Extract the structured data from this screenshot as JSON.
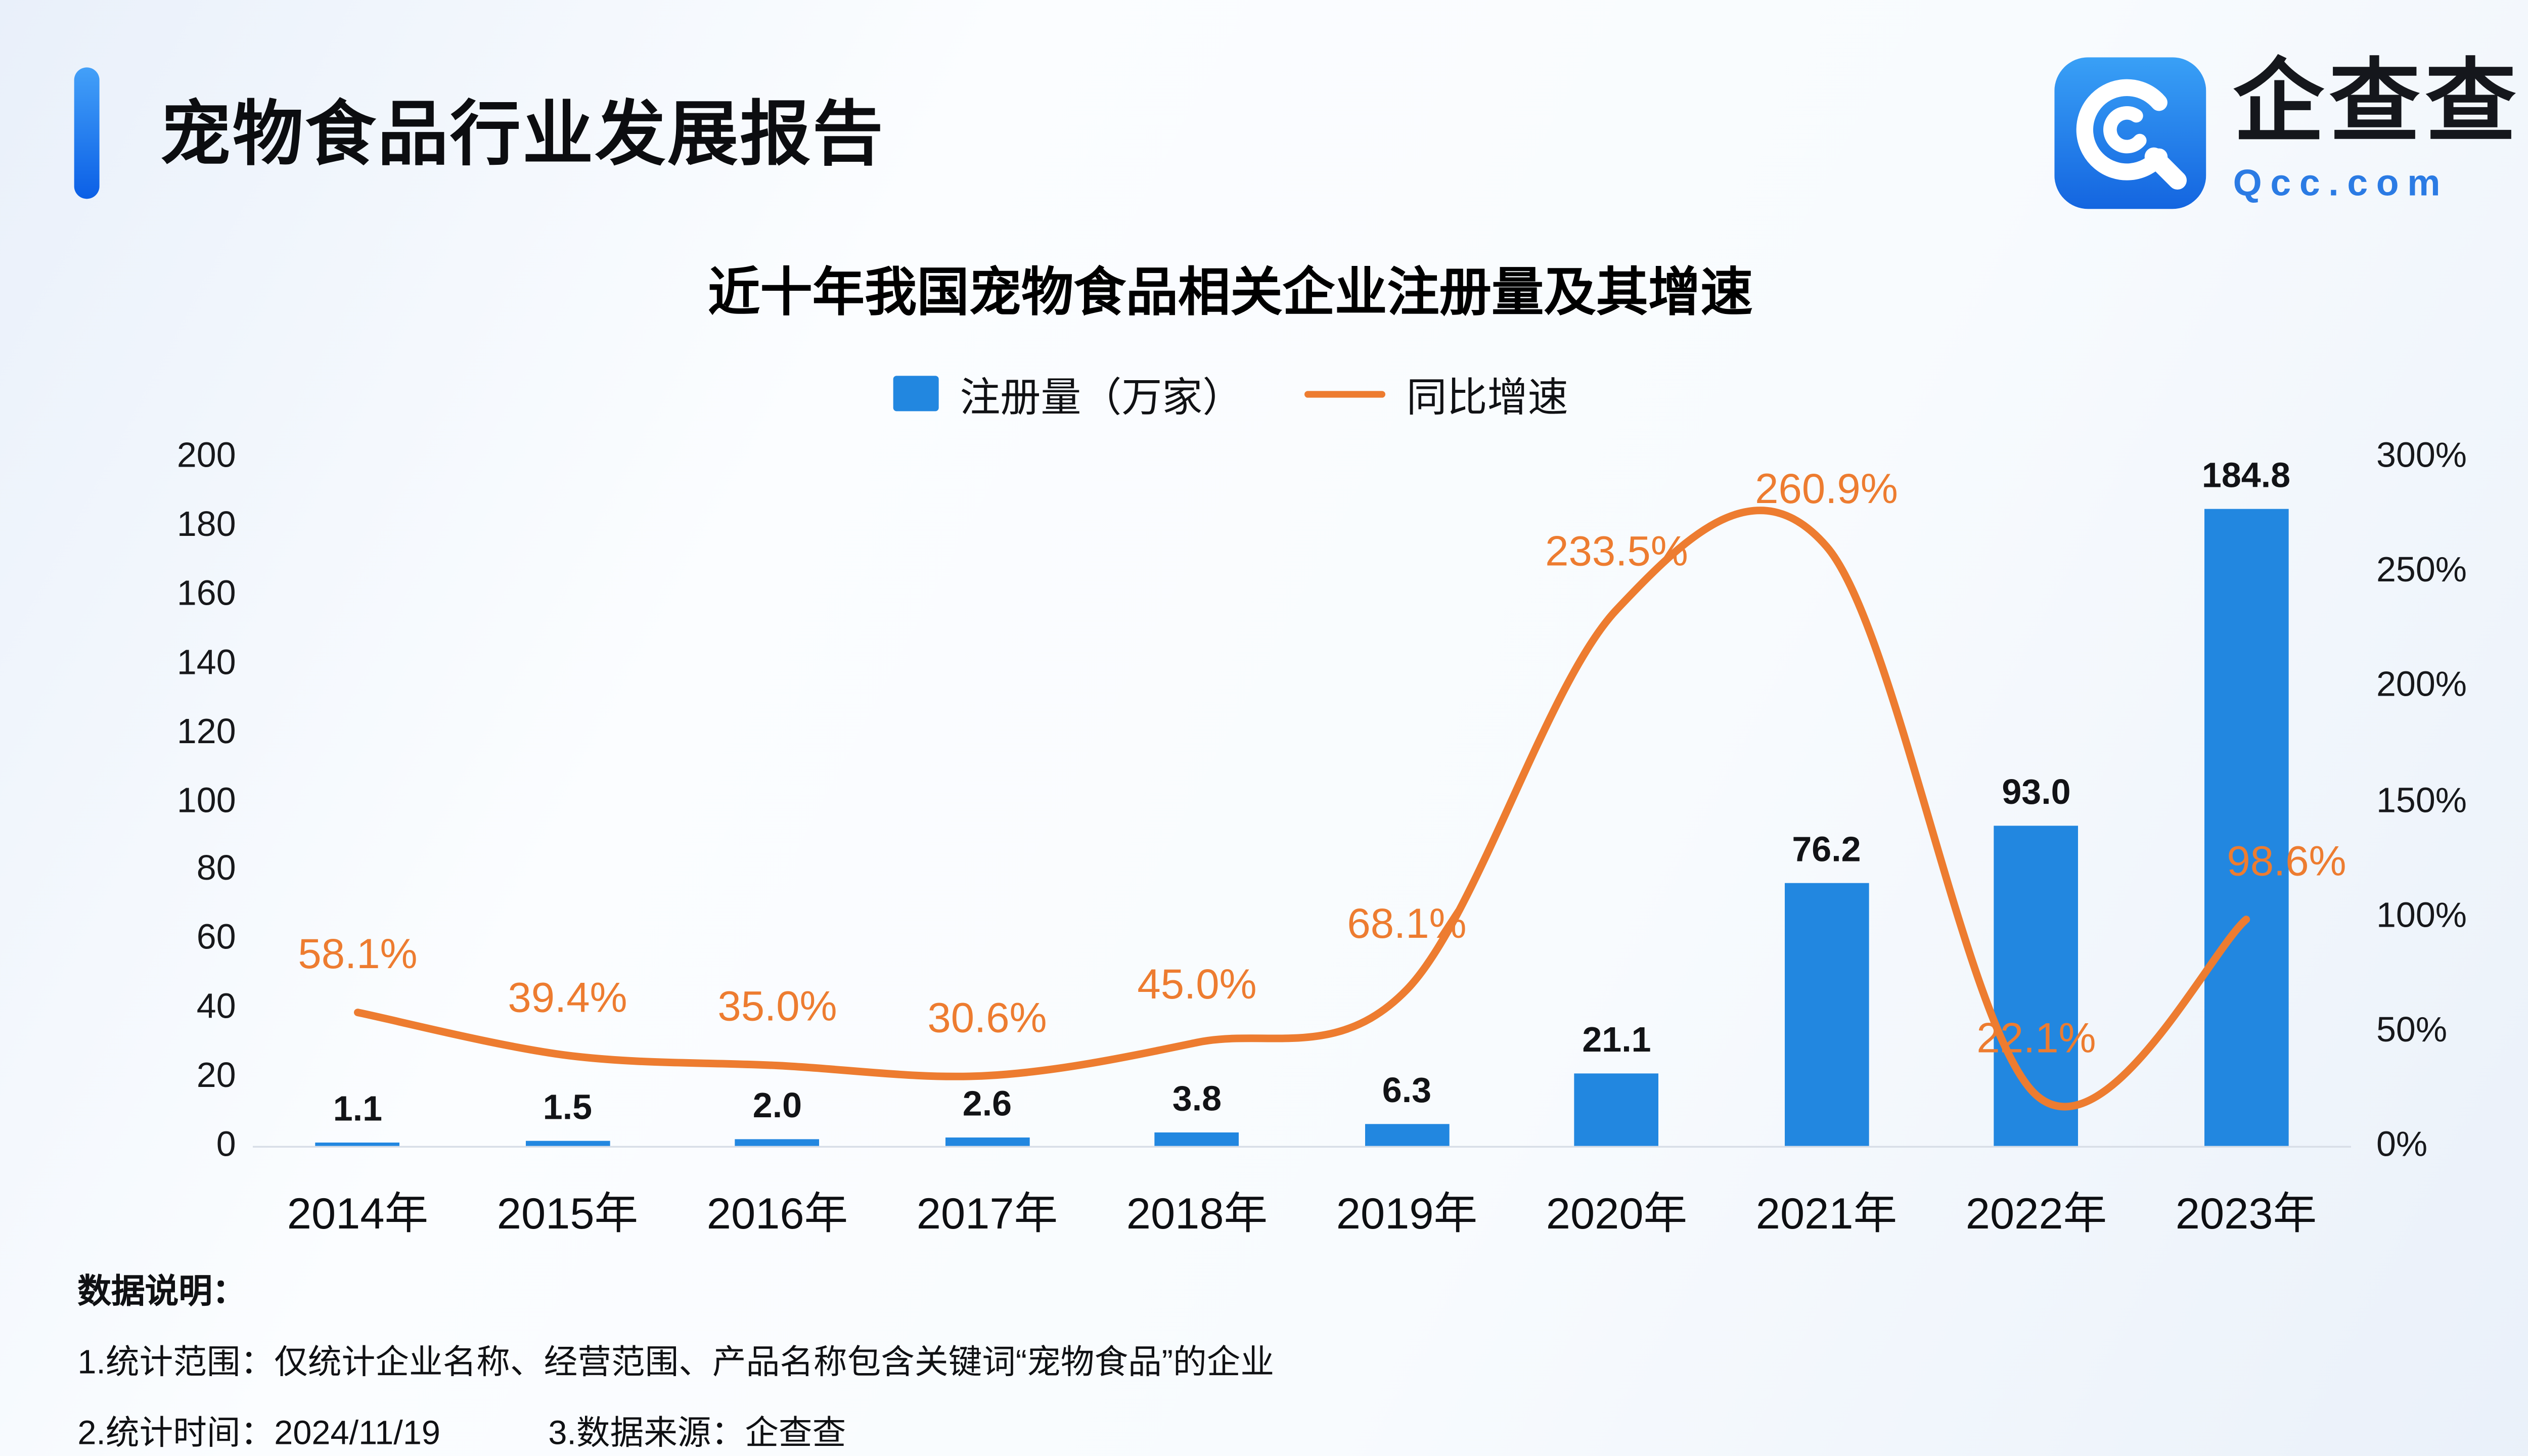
{
  "header": {
    "title": "宠物食品行业发展报告"
  },
  "logo": {
    "name": "企查查",
    "domain": "Qcc.com",
    "brand_color": "#2b7be4"
  },
  "chart": {
    "title": "近十年我国宠物食品相关企业注册量及其增速"
  },
  "chart_data": {
    "type": "bar+line",
    "categories": [
      "2014年",
      "2015年",
      "2016年",
      "2017年",
      "2018年",
      "2019年",
      "2020年",
      "2021年",
      "2022年",
      "2023年"
    ],
    "series": [
      {
        "name": "注册量（万家）",
        "type": "bar",
        "values": [
          1.1,
          1.5,
          2.0,
          2.6,
          3.8,
          6.3,
          21.1,
          76.2,
          93.0,
          184.8
        ],
        "labels": [
          "1.1",
          "1.5",
          "2.0",
          "2.6",
          "3.8",
          "6.3",
          "21.1",
          "76.2",
          "93.0",
          "184.8"
        ]
      },
      {
        "name": "同比增速",
        "type": "line",
        "values": [
          58.1,
          39.4,
          35.0,
          30.6,
          45.0,
          68.1,
          233.5,
          260.9,
          22.1,
          98.6
        ],
        "labels": [
          "58.1%",
          "39.4%",
          "35.0%",
          "30.6%",
          "45.0%",
          "68.1%",
          "233.5%",
          "260.9%",
          "22.1%",
          "98.6%"
        ]
      }
    ],
    "left_axis": {
      "min": 0,
      "max": 200,
      "step": 20,
      "ticks": [
        0,
        20,
        40,
        60,
        80,
        100,
        120,
        140,
        160,
        180,
        200
      ]
    },
    "right_axis": {
      "min": 0,
      "max": 300,
      "step": 50,
      "ticks": [
        "0%",
        "50%",
        "100%",
        "150%",
        "200%",
        "250%",
        "300%"
      ]
    },
    "grid": false,
    "legend_position": "top-center",
    "colors": {
      "bar": "#2287e0",
      "line": "#ed7c30"
    }
  },
  "footer": {
    "heading": "数据说明：",
    "line1": "1.统计范围：仅统计企业名称、经营范围、产品名称包含关键词“宠物食品”的企业",
    "line2": "2.统计时间：2024/11/19",
    "line3": "3.数据来源：企查查"
  }
}
